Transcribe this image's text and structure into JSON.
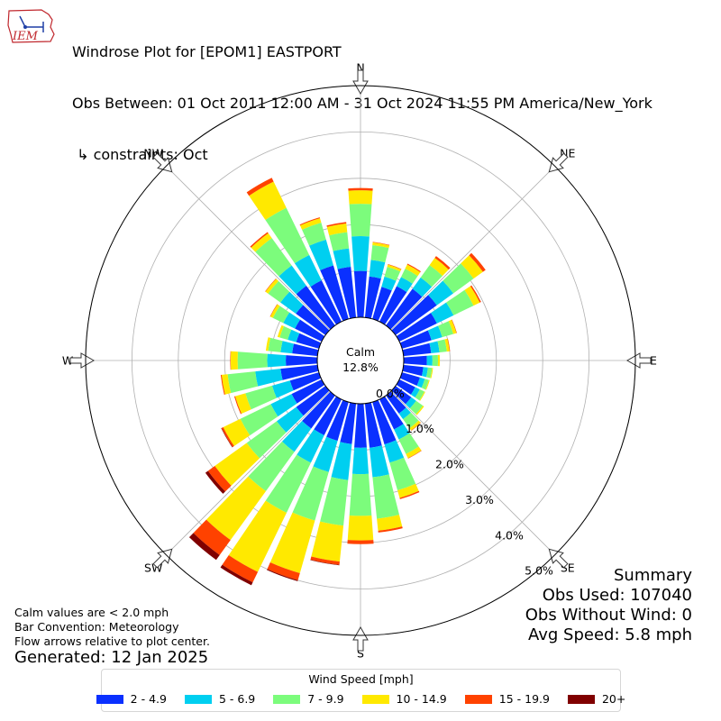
{
  "header": {
    "line1": "Windrose Plot for [EPOM1] EASTPORT",
    "line2": "Obs Between: 01 Oct 2011 12:00 AM - 31 Oct 2024 11:55 PM America/New_York",
    "line3": " ↳ constraints: Oct"
  },
  "logo": {
    "text": "IEM",
    "color": "#c0272d",
    "accent": "#1f3fa6"
  },
  "summary": {
    "title": "Summary",
    "obs_used": "Obs Used: 107040",
    "obs_without_wind": "Obs Without Wind: 0",
    "avg_speed": "Avg Speed: 5.8 mph"
  },
  "notes": {
    "calm_note": "Calm values are < 2.0 mph",
    "bar_convention": "Bar Convention: Meteorology",
    "flow_arrows": "Flow arrows relative to plot center.",
    "generated": "Generated: 12 Jan 2025"
  },
  "chart_data": {
    "type": "windrose",
    "calm_label": "Calm",
    "calm_value": "12.8%",
    "calm_percent": 12.8,
    "radial_unit": "%",
    "rlim": [
      0,
      5.0
    ],
    "grid": true,
    "radial_ticks": [
      "0.0%",
      "1.0%",
      "2.0%",
      "3.0%",
      "4.0%",
      "5.0%"
    ],
    "radial_tick_values": [
      0,
      1,
      2,
      3,
      4,
      5
    ],
    "compass_labels": [
      {
        "label": "N",
        "angle": 0
      },
      {
        "label": "NE",
        "angle": 45
      },
      {
        "label": "E",
        "angle": 90
      },
      {
        "label": "SE",
        "angle": 135
      },
      {
        "label": "S",
        "angle": 180
      },
      {
        "label": "SW",
        "angle": 225
      },
      {
        "label": "W",
        "angle": 270
      },
      {
        "label": "NW",
        "angle": 315
      }
    ],
    "legend_title": "Wind Speed [mph]",
    "legend_placement": "bottom-center",
    "speed_bins": [
      {
        "label": "2 - 4.9",
        "color": "#0a30ff"
      },
      {
        "label": "5 - 6.9",
        "color": "#00cff0"
      },
      {
        "label": "7 - 9.9",
        "color": "#7cfc7c"
      },
      {
        "label": "10 - 14.9",
        "color": "#ffe900"
      },
      {
        "label": "15 - 19.9",
        "color": "#ff4200"
      },
      {
        "label": "20+",
        "color": "#800000"
      }
    ],
    "directions": [
      0,
      10,
      20,
      30,
      40,
      50,
      60,
      70,
      80,
      90,
      100,
      110,
      120,
      130,
      140,
      150,
      160,
      170,
      180,
      190,
      200,
      210,
      220,
      230,
      240,
      250,
      260,
      270,
      280,
      290,
      300,
      310,
      320,
      330,
      340,
      350
    ],
    "cumulative": [
      [
        1.0,
        1.75,
        2.45,
        2.74,
        2.79,
        2.79
      ],
      [
        0.89,
        1.25,
        1.57,
        1.63,
        1.64,
        1.64
      ],
      [
        0.72,
        0.95,
        1.17,
        1.22,
        1.23,
        1.23
      ],
      [
        0.85,
        1.07,
        1.27,
        1.37,
        1.39,
        1.39
      ],
      [
        0.98,
        1.28,
        1.61,
        1.8,
        1.85,
        1.85
      ],
      [
        1.1,
        1.54,
        2.08,
        2.33,
        2.4,
        2.4
      ],
      [
        0.9,
        1.3,
        1.78,
        1.93,
        1.96,
        1.96
      ],
      [
        0.66,
        0.9,
        1.15,
        1.22,
        1.23,
        1.23
      ],
      [
        0.6,
        0.78,
        0.94,
        1.0,
        1.01,
        1.01
      ],
      [
        0.5,
        0.62,
        0.74,
        0.78,
        0.78,
        0.78
      ],
      [
        0.43,
        0.53,
        0.62,
        0.64,
        0.64,
        0.64
      ],
      [
        0.4,
        0.51,
        0.6,
        0.62,
        0.62,
        0.62
      ],
      [
        0.38,
        0.49,
        0.6,
        0.62,
        0.62,
        0.62
      ],
      [
        0.42,
        0.55,
        0.73,
        0.76,
        0.76,
        0.76
      ],
      [
        0.48,
        0.63,
        0.87,
        0.93,
        0.94,
        0.94
      ],
      [
        0.72,
        0.96,
        1.31,
        1.41,
        1.42,
        1.42
      ],
      [
        0.95,
        1.36,
        1.98,
        2.15,
        2.18,
        2.18
      ],
      [
        0.96,
        1.6,
        2.5,
        2.76,
        2.8,
        2.8
      ],
      [
        0.95,
        1.52,
        2.42,
        2.95,
        3.03,
        3.03
      ],
      [
        0.88,
        1.66,
        2.65,
        3.43,
        3.5,
        3.51
      ],
      [
        0.87,
        1.57,
        2.66,
        3.84,
        4.0,
        4.02
      ],
      [
        0.86,
        1.52,
        2.72,
        4.14,
        4.39,
        4.46
      ],
      [
        0.88,
        1.5,
        2.55,
        3.85,
        4.25,
        4.38
      ],
      [
        0.78,
        1.3,
        2.1,
        2.95,
        3.13,
        3.2
      ],
      [
        0.72,
        1.22,
        1.95,
        2.36,
        2.4,
        2.41
      ],
      [
        0.65,
        1.05,
        1.65,
        1.88,
        1.9,
        1.9
      ],
      [
        0.8,
        1.35,
        1.95,
        2.08,
        2.1,
        2.1
      ],
      [
        0.68,
        1.08,
        1.72,
        1.87,
        1.88,
        1.88
      ],
      [
        0.55,
        0.8,
        1.07,
        1.12,
        1.12,
        1.12
      ],
      [
        0.51,
        0.7,
        0.88,
        0.93,
        0.93,
        0.93
      ],
      [
        0.64,
        0.92,
        1.17,
        1.23,
        1.24,
        1.24
      ],
      [
        0.79,
        1.2,
        1.53,
        1.6,
        1.61,
        1.61
      ],
      [
        1.06,
        1.6,
        2.33,
        2.46,
        2.49,
        2.49
      ],
      [
        0.99,
        1.6,
        2.73,
        3.36,
        3.45,
        3.45
      ],
      [
        1.2,
        1.78,
        2.16,
        2.26,
        2.28,
        2.28
      ],
      [
        1.1,
        1.5,
        1.85,
        2.04,
        2.07,
        2.07
      ]
    ]
  }
}
